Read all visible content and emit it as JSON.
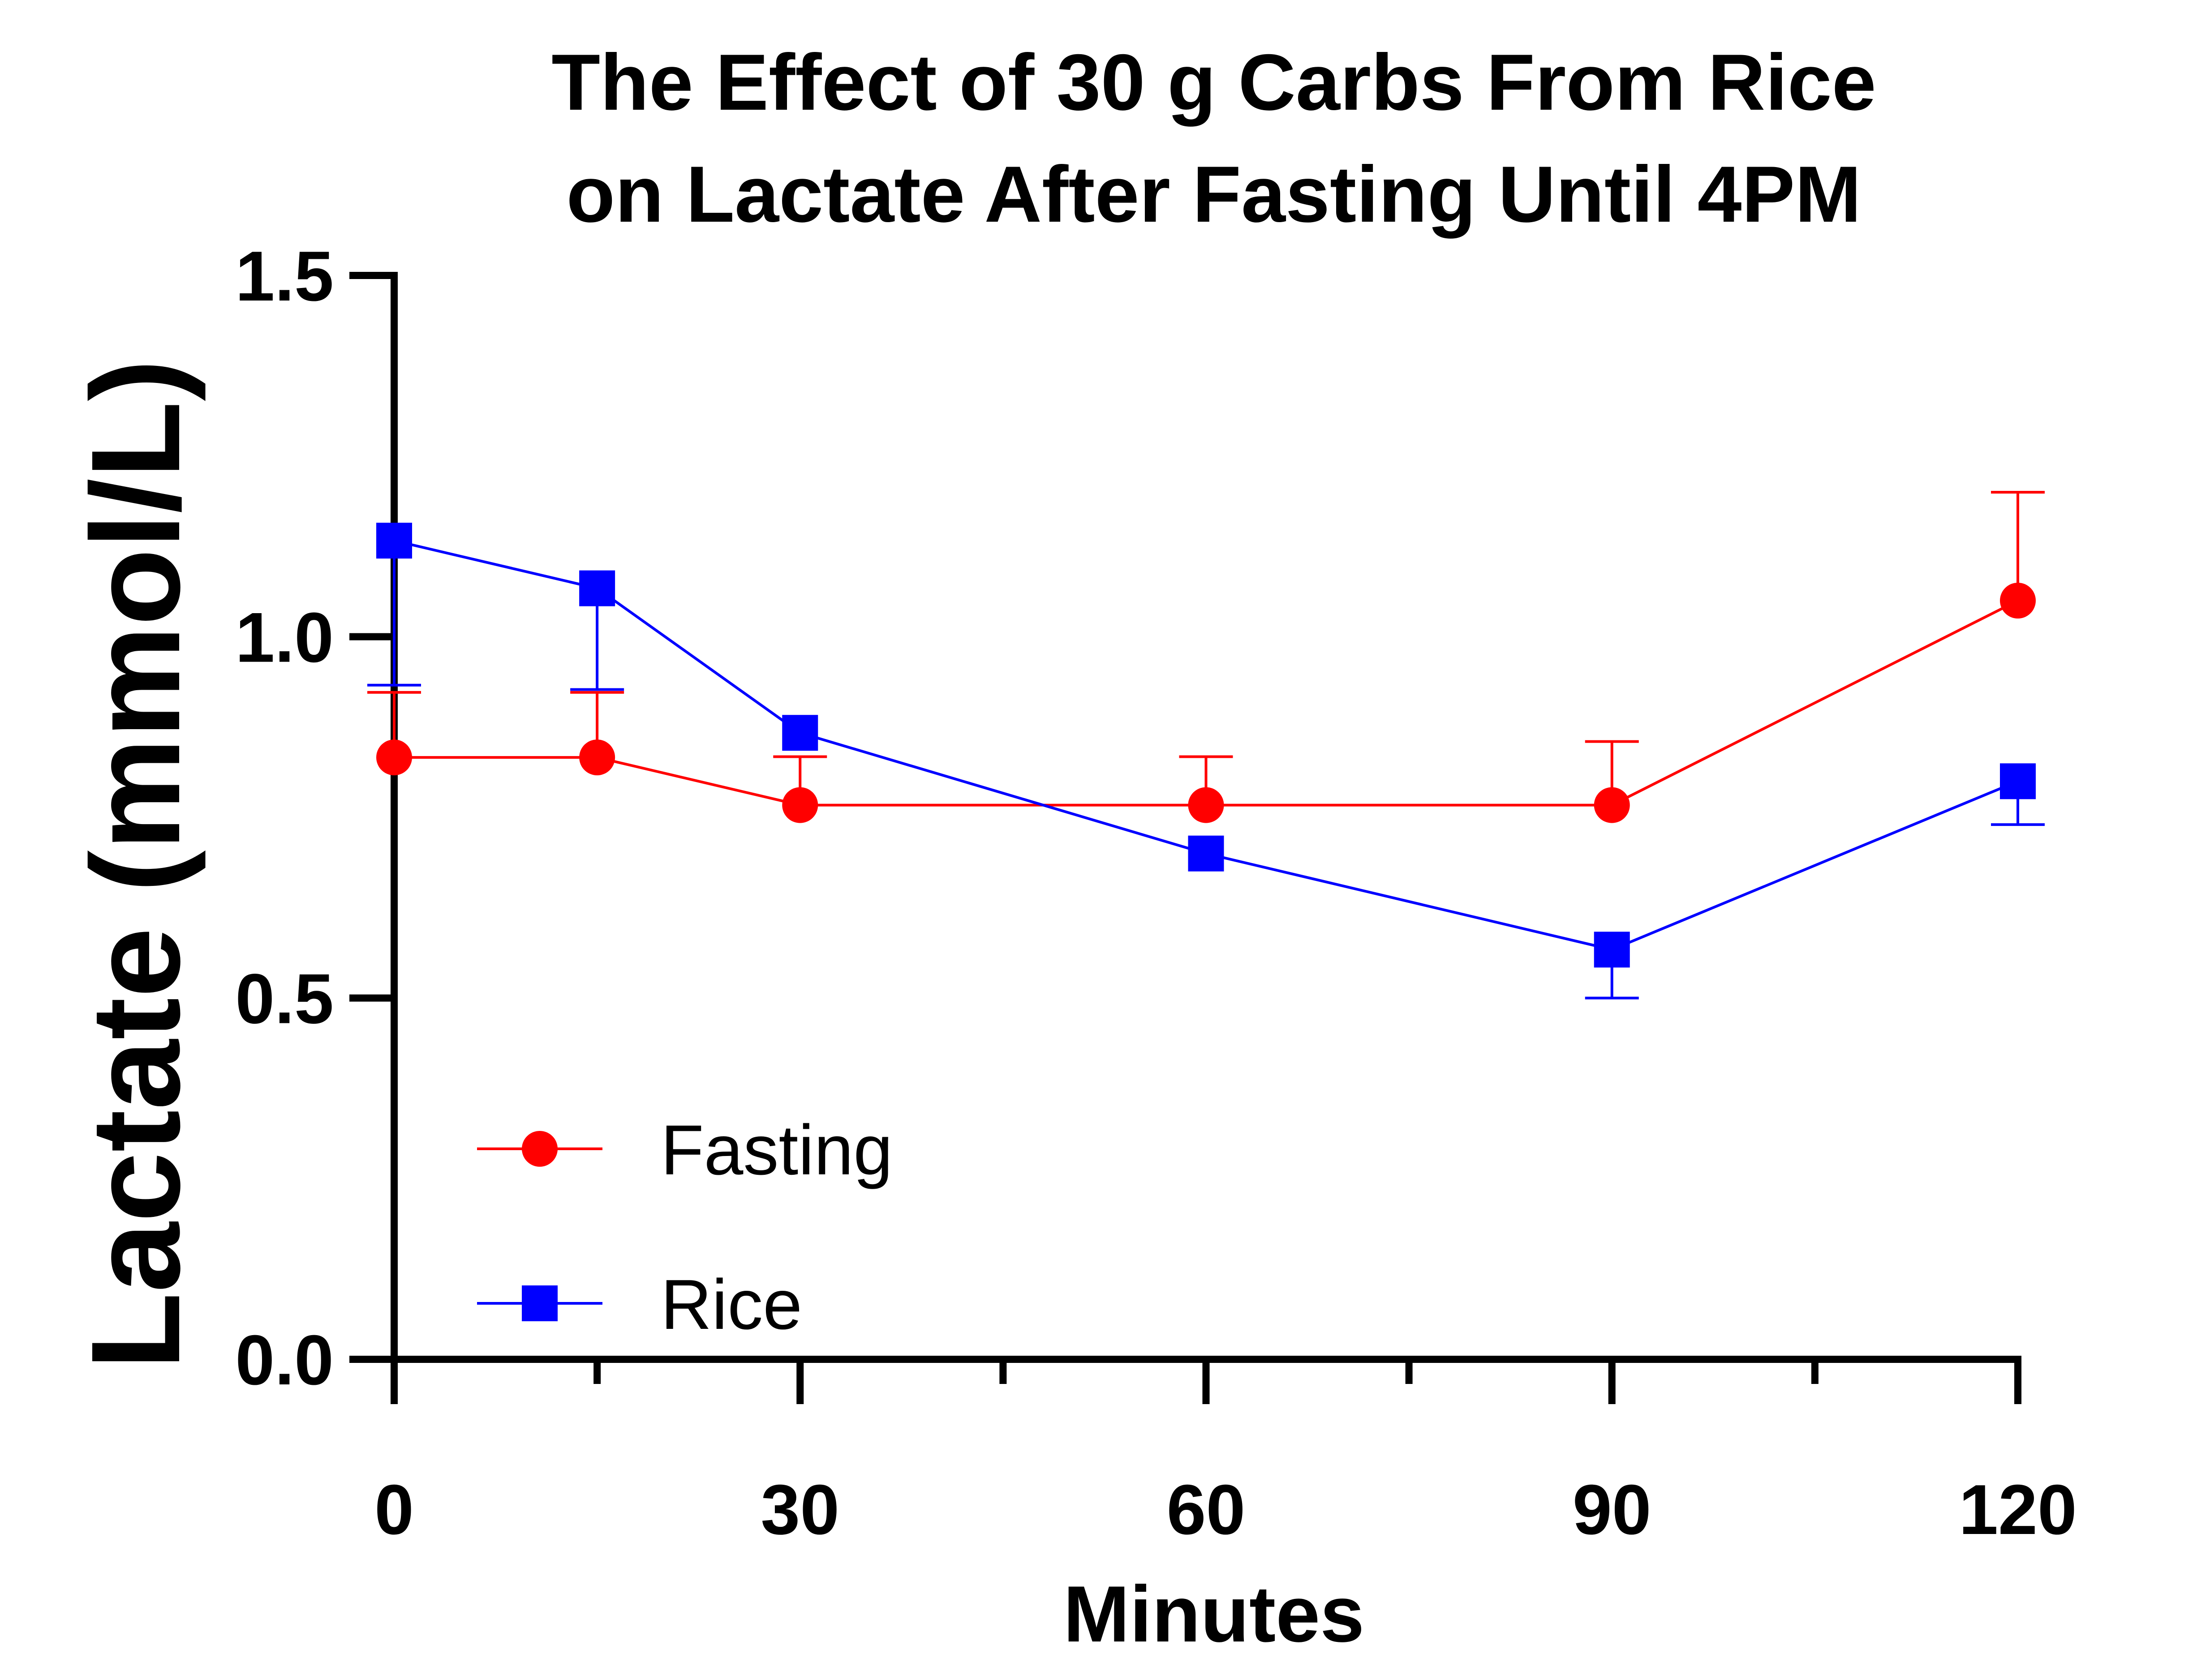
{
  "chart_data": {
    "type": "line",
    "title_lines": [
      "The Effect of 30 g Carbs From Rice",
      "on Lactate After Fasting Until 4PM"
    ],
    "xlabel": "Minutes",
    "ylabel": "Lactate (mmol/L)",
    "xlim": [
      0,
      120
    ],
    "ylim": [
      0,
      1.5
    ],
    "x_ticks": [
      0,
      30,
      60,
      90,
      120
    ],
    "x_minor_ticks": [
      15,
      45,
      75,
      105
    ],
    "y_ticks": [
      "0.0",
      "0.5",
      "1.0",
      "1.5"
    ],
    "grid": false,
    "legend_position": "bottom-left",
    "series": [
      {
        "name": "Fasting",
        "color": "#ff0000",
        "marker": "circle",
        "error_direction": "up",
        "points": [
          {
            "x": 0,
            "y": 0.833,
            "err": 0.09
          },
          {
            "x": 15,
            "y": 0.833,
            "err": 0.09
          },
          {
            "x": 30,
            "y": 0.767,
            "err": 0.067
          },
          {
            "x": 60,
            "y": 0.767,
            "err": 0.067
          },
          {
            "x": 90,
            "y": 0.767,
            "err": 0.088
          },
          {
            "x": 120,
            "y": 1.05,
            "err": 0.15
          }
        ]
      },
      {
        "name": "Rice",
        "color": "#0000ff",
        "marker": "square",
        "error_direction": "down",
        "points": [
          {
            "x": 0,
            "y": 1.133,
            "err": 0.2
          },
          {
            "x": 15,
            "y": 1.067,
            "err": 0.14
          },
          {
            "x": 30,
            "y": 0.867,
            "err": 0.0
          },
          {
            "x": 60,
            "y": 0.7,
            "err": 0.0
          },
          {
            "x": 90,
            "y": 0.567,
            "err": 0.067
          },
          {
            "x": 120,
            "y": 0.8,
            "err": 0.06
          }
        ]
      }
    ]
  }
}
